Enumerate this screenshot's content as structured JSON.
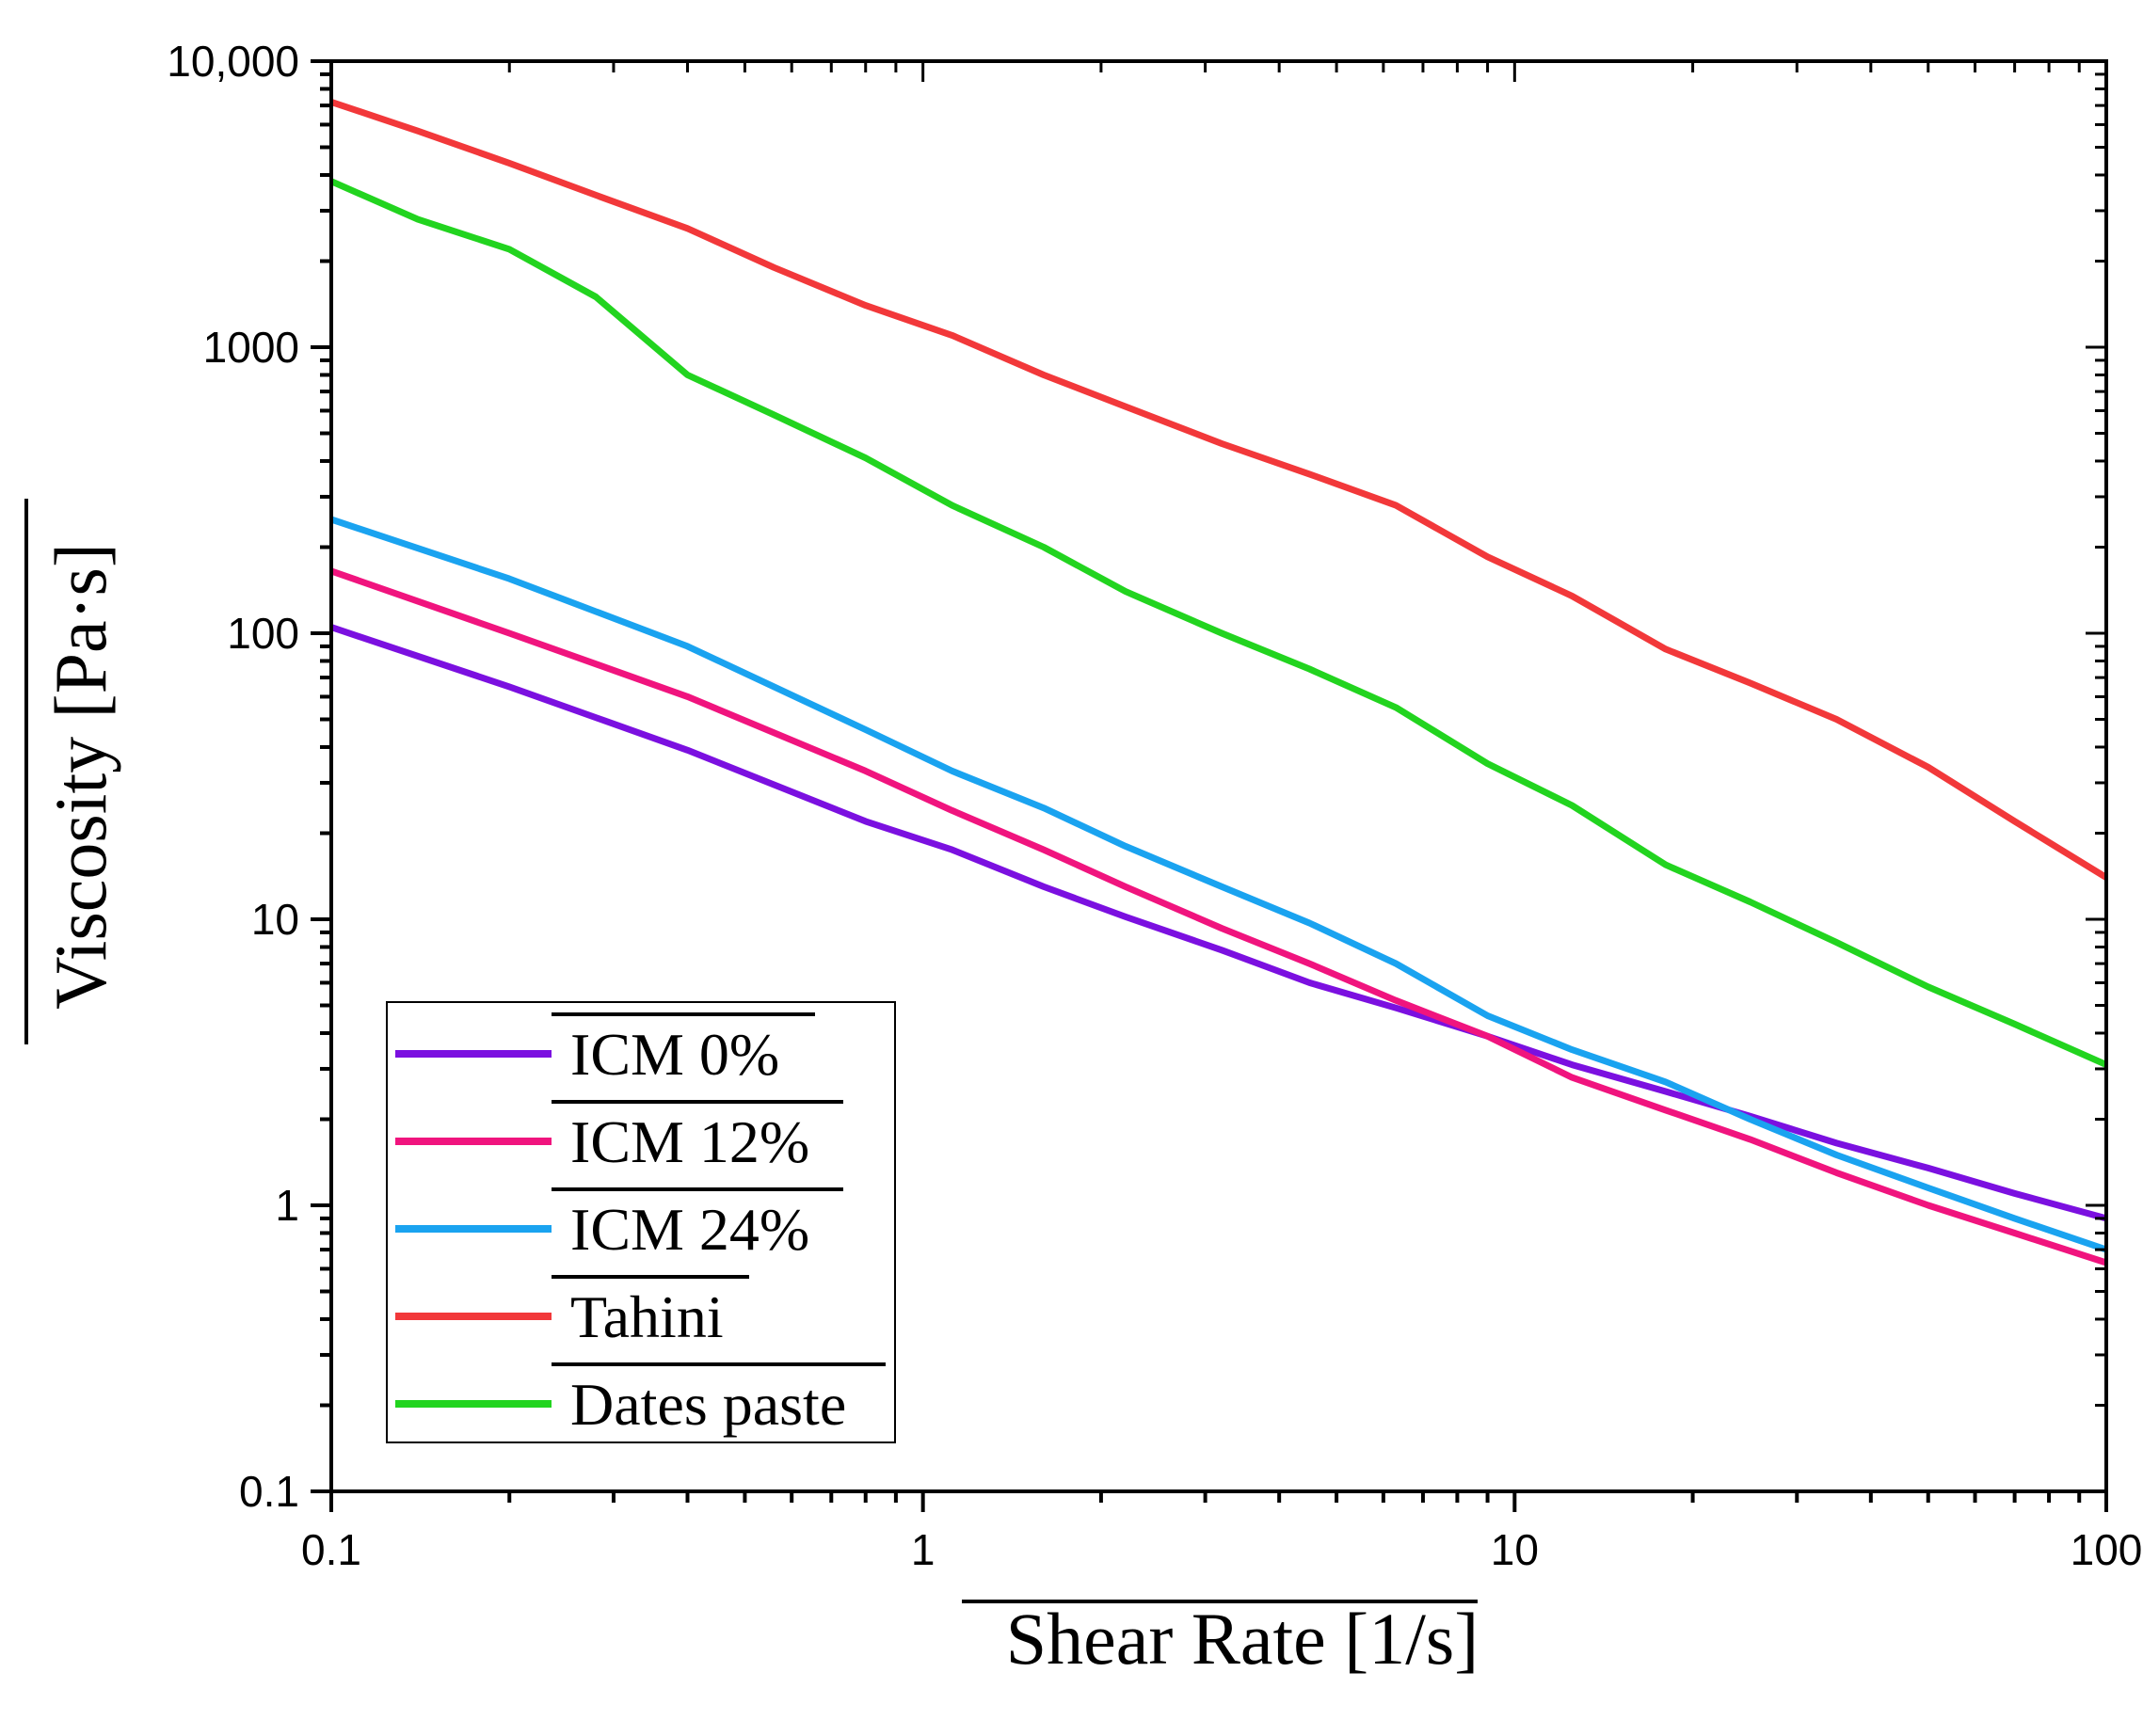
{
  "chart_data": {
    "type": "line",
    "title": "",
    "xlabel": "Shear Rate [1/s]",
    "ylabel": "Viscosity [Pa·s]",
    "x_scale": "log",
    "y_scale": "log",
    "xlim": [
      0.1,
      100
    ],
    "ylim": [
      0.1,
      10000
    ],
    "grid": false,
    "legend_position": "bottom-left",
    "x_ticks": [
      {
        "value": 0.1,
        "label": "0.1"
      },
      {
        "value": 1,
        "label": "1"
      },
      {
        "value": 10,
        "label": "10"
      },
      {
        "value": 100,
        "label": "100"
      }
    ],
    "y_ticks": [
      {
        "value": 0.1,
        "label": "0.1"
      },
      {
        "value": 1,
        "label": "1"
      },
      {
        "value": 10,
        "label": "10"
      },
      {
        "value": 100,
        "label": "100"
      },
      {
        "value": 1000,
        "label": "1000"
      },
      {
        "value": 10000,
        "label": "10,000"
      }
    ],
    "series": [
      {
        "name": "ICM 0%",
        "color": "#7B10E0",
        "x": [
          0.1,
          0.2,
          0.4,
          0.8,
          1.12,
          1.6,
          2.2,
          3.2,
          4.5,
          6.3,
          9,
          12.5,
          18,
          25,
          35,
          50,
          70,
          100
        ],
        "y": [
          105,
          65,
          39,
          22,
          17.5,
          13,
          10.2,
          7.8,
          6,
          4.9,
          3.9,
          3.1,
          2.5,
          2.05,
          1.65,
          1.35,
          1.1,
          0.9
        ]
      },
      {
        "name": "ICM 12%",
        "color": "#F0147E",
        "x": [
          0.1,
          0.2,
          0.4,
          0.8,
          1.12,
          1.6,
          2.2,
          3.2,
          4.5,
          6.3,
          9,
          12.5,
          18,
          25,
          35,
          50,
          70,
          100
        ],
        "y": [
          165,
          100,
          60,
          33,
          24,
          17.5,
          13,
          9.3,
          7,
          5.2,
          3.9,
          2.8,
          2.15,
          1.7,
          1.3,
          1.0,
          0.8,
          0.63
        ]
      },
      {
        "name": "ICM 24%",
        "color": "#1AA3F0",
        "x": [
          0.1,
          0.2,
          0.4,
          0.8,
          1.12,
          1.6,
          2.2,
          3.2,
          4.5,
          6.3,
          9,
          12.5,
          18,
          25,
          35,
          50,
          70,
          100
        ],
        "y": [
          250,
          155,
          90,
          46,
          33,
          24.5,
          18,
          13,
          9.7,
          7,
          4.6,
          3.5,
          2.7,
          2.0,
          1.5,
          1.15,
          0.9,
          0.7
        ]
      },
      {
        "name": "Tahini",
        "color": "#F2383A",
        "x": [
          0.1,
          0.14,
          0.2,
          0.28,
          0.4,
          0.56,
          0.8,
          1.12,
          1.6,
          2.2,
          3.2,
          4.5,
          6.3,
          9,
          12.5,
          18,
          25,
          35,
          50,
          70,
          100
        ],
        "y": [
          7200,
          5700,
          4400,
          3400,
          2600,
          1900,
          1400,
          1100,
          800,
          620,
          460,
          360,
          280,
          185,
          135,
          88,
          67,
          50,
          34,
          22,
          14
        ]
      },
      {
        "name": "Dates paste",
        "color": "#22D41F",
        "x": [
          0.1,
          0.14,
          0.2,
          0.28,
          0.4,
          0.56,
          0.8,
          1.12,
          1.6,
          2.2,
          3.2,
          4.5,
          6.3,
          9,
          12.5,
          18,
          25,
          35,
          50,
          70,
          100
        ],
        "y": [
          3800,
          2800,
          2200,
          1500,
          800,
          580,
          410,
          280,
          200,
          140,
          100,
          75,
          55,
          35,
          25,
          15.5,
          11.5,
          8.3,
          5.8,
          4.3,
          3.1
        ]
      }
    ]
  }
}
